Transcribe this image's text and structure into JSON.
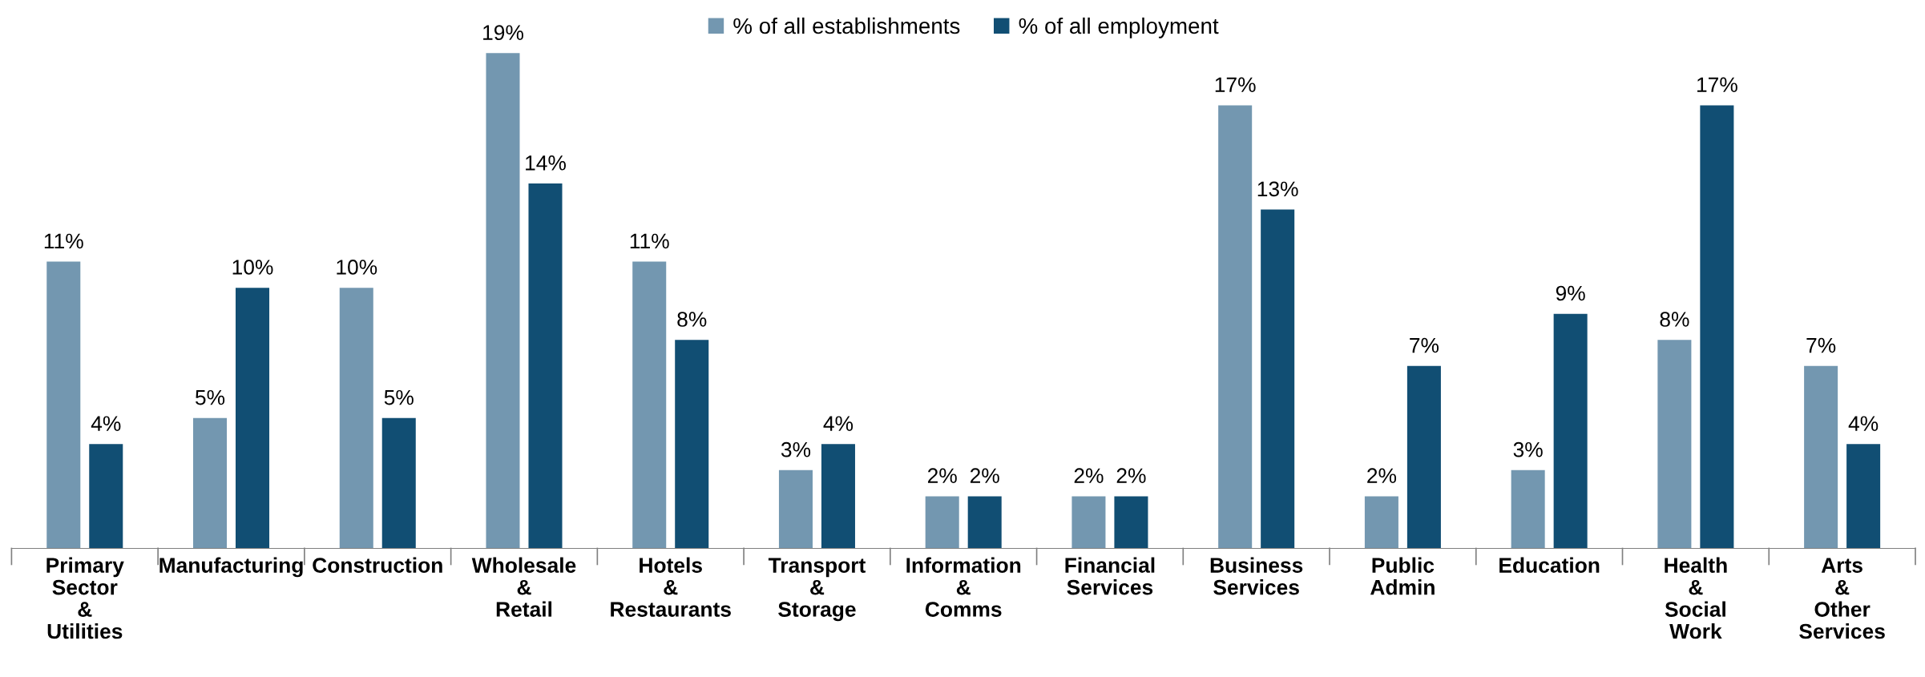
{
  "chart_data": {
    "type": "bar",
    "categories": [
      "Primary\nSector\n&\nUtilities",
      "Manufacturing",
      "Construction",
      "Wholesale\n&\nRetail",
      "Hotels\n&\nRestaurants",
      "Transport\n&\nStorage",
      "Information\n&\nComms",
      "Financial\nServices",
      "Business\nServices",
      "Public\nAdmin",
      "Education",
      "Health\n&\nSocial\nWork",
      "Arts\n&\nOther\nServices"
    ],
    "series": [
      {
        "name": "% of all establishments",
        "color": "#7397b0",
        "values": [
          11,
          5,
          10,
          19,
          11,
          3,
          2,
          2,
          17,
          2,
          3,
          8,
          7
        ],
        "value_labels": [
          "11%",
          "5%",
          "10%",
          "19%",
          "11%",
          "3%",
          "2%",
          "2%",
          "17%",
          "2%",
          "3%",
          "8%",
          "7%"
        ]
      },
      {
        "name": "% of all employment",
        "color": "#114e73",
        "values": [
          4,
          10,
          5,
          14,
          8,
          4,
          2,
          2,
          13,
          7,
          9,
          17,
          4
        ],
        "value_labels": [
          "4%",
          "10%",
          "5%",
          "14%",
          "8%",
          "4%",
          "2%",
          "2%",
          "13%",
          "7%",
          "9%",
          "17%",
          "4%"
        ]
      }
    ],
    "legend": "top",
    "grid": false
  }
}
